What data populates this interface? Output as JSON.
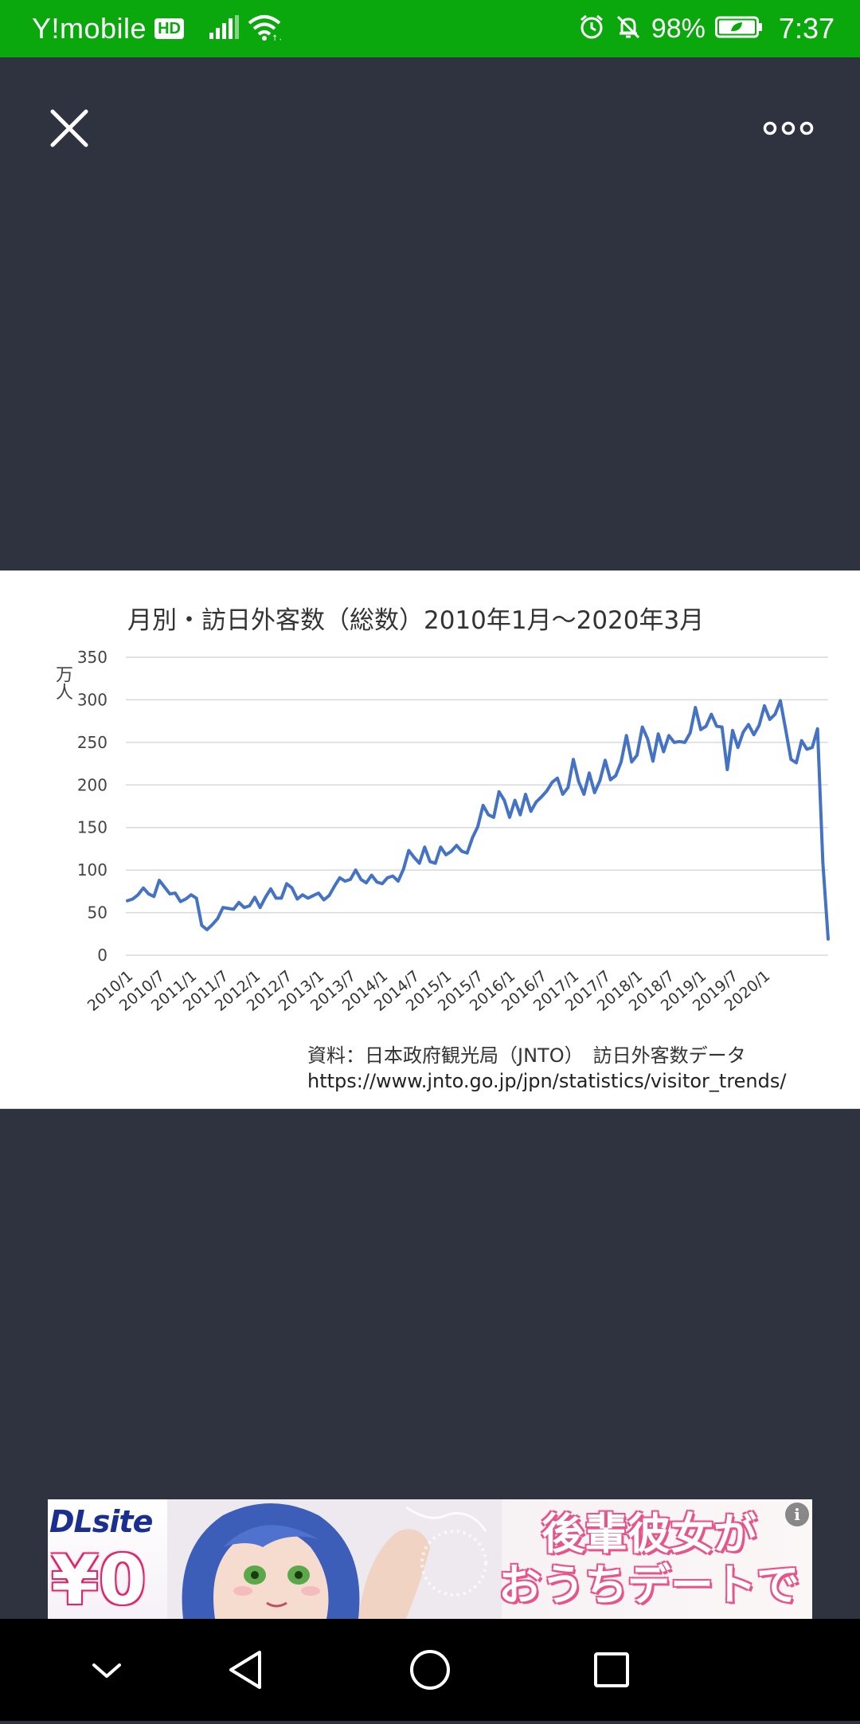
{
  "status_bar": {
    "carrier": "Y!mobile",
    "network_badge": "HD",
    "battery_percent": "98%",
    "time": "7:37",
    "icons": [
      "signal-icon",
      "wifi-icon",
      "alarm-icon",
      "mute-bell-icon",
      "battery-saver-icon"
    ]
  },
  "toolbar": {
    "close_icon": "close-icon",
    "more_icon": "more-options-icon"
  },
  "image_viewer": {
    "source_line1": "資料：日本政府観光局（JNTO）　訪日外客数データ",
    "source_line2": "https://www.jnto.go.jp/jpn/statistics/visitor_trends/"
  },
  "chart_data": {
    "type": "line",
    "title": "月別・訪日外客数（総数）2010年1月～2020年3月",
    "ylabel": "万人",
    "xlabel": "",
    "ylim": [
      0,
      350
    ],
    "y_ticks": [
      "0",
      "50",
      "100",
      "150",
      "200",
      "250",
      "300",
      "350"
    ],
    "x_ticks": [
      "2010/1",
      "2010/7",
      "2011/1",
      "2011/7",
      "2012/1",
      "2012/7",
      "2013/1",
      "2013/7",
      "2014/1",
      "2014/7",
      "2015/1",
      "2015/7",
      "2016/1",
      "2016/7",
      "2017/1",
      "2017/7",
      "2018/1",
      "2018/7",
      "2019/1",
      "2019/7",
      "2020/1"
    ],
    "grid": true,
    "legend": "none",
    "series_color": "#4472c4",
    "series": [
      {
        "values": [
          64,
          66,
          71,
          79,
          72,
          69,
          88,
          80,
          72,
          73,
          63,
          66,
          71,
          67,
          35,
          30,
          36,
          43,
          56,
          55,
          54,
          62,
          56,
          58,
          68,
          56,
          68,
          78,
          67,
          67,
          84,
          79,
          66,
          71,
          67,
          70,
          73,
          65,
          70,
          81,
          91,
          87,
          89,
          100,
          89,
          85,
          94,
          86,
          84,
          91,
          93,
          87,
          101,
          123,
          115,
          108,
          127,
          110,
          108,
          127,
          118,
          122,
          129,
          122,
          120,
          138,
          151,
          176,
          165,
          162,
          192,
          182,
          162,
          182,
          165,
          189,
          169,
          180,
          186,
          193,
          203,
          208,
          189,
          197,
          230,
          204,
          189,
          214,
          191,
          205,
          229,
          206,
          211,
          227,
          258,
          227,
          235,
          268,
          254,
          228,
          260,
          239,
          258,
          250,
          251,
          250,
          261,
          291,
          265,
          269,
          283,
          269,
          268,
          218,
          264,
          244,
          262,
          271,
          259,
          270,
          293,
          277,
          283,
          299,
          265,
          230,
          226,
          252,
          242,
          244,
          266,
          109,
          19
        ]
      }
    ]
  },
  "ad": {
    "logo": "DLsite",
    "price": "¥0",
    "headline_line1": "後輩彼女が",
    "headline_line2": "おうちデートで",
    "info_label": "i"
  },
  "nav_bar": {
    "icons": [
      "collapse-chevron-icon",
      "back-icon",
      "home-icon",
      "recents-icon"
    ]
  }
}
